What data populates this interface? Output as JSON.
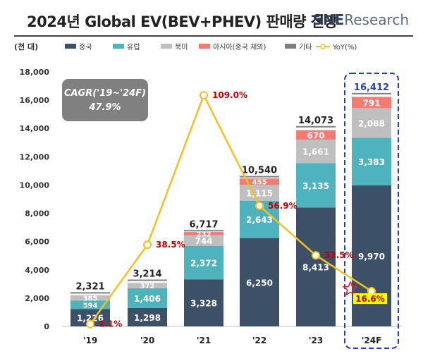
{
  "header": {
    "title": "2024년 Global EV(BEV+PHEV) 판매량 전망",
    "logo_sne": "SNE",
    "logo_research": "Research"
  },
  "chart_data": {
    "type": "bar",
    "stacked": true,
    "unit_label": "(천 대)",
    "categories": [
      "'19",
      "'20",
      "'21",
      "'22",
      "'23",
      "'24F"
    ],
    "series": [
      {
        "name": "중국",
        "color": "#3c5068",
        "values": [
          1226,
          1298,
          3328,
          6250,
          8413,
          9970
        ]
      },
      {
        "name": "유럽",
        "color": "#4fb3bd",
        "values": [
          594,
          1406,
          2372,
          2643,
          3135,
          3383
        ]
      },
      {
        "name": "북미",
        "color": "#bfbfbf",
        "values": [
          385,
          372,
          744,
          1115,
          1661,
          2088
        ]
      },
      {
        "name": "아시아(중국 제외)",
        "color": "#f47a72",
        "values": [
          null,
          null,
          232,
          455,
          670,
          791
        ]
      },
      {
        "name": "기타",
        "color": "#7f7f7f",
        "values": [
          null,
          null,
          null,
          null,
          null,
          null
        ]
      }
    ],
    "totals": [
      2321,
      3214,
      6717,
      10540,
      14073,
      16412
    ],
    "yoy": {
      "name": "YoY(%)",
      "color": "#f7bf1f",
      "labels": [
        "1.1%",
        "38.5%",
        "109.0%",
        "56.9%",
        "33.5%",
        "16.6%"
      ],
      "values": [
        1.1,
        38.5,
        109.0,
        56.9,
        33.5,
        16.6
      ]
    },
    "ylim": [
      0,
      18000
    ],
    "yticks": [
      0,
      2000,
      4000,
      6000,
      8000,
      10000,
      12000,
      14000,
      16000,
      18000
    ],
    "cagr_text": "CAGR('19~'24F)",
    "cagr_value": "47.9%",
    "highlight_category": "'24F",
    "colors": {
      "total_label": "#222222",
      "total_highlight": "#1f3fbf",
      "yoy_label": "#c00000",
      "yoy_highlight_bg": "#ffff00",
      "star": "#d9262b"
    }
  }
}
